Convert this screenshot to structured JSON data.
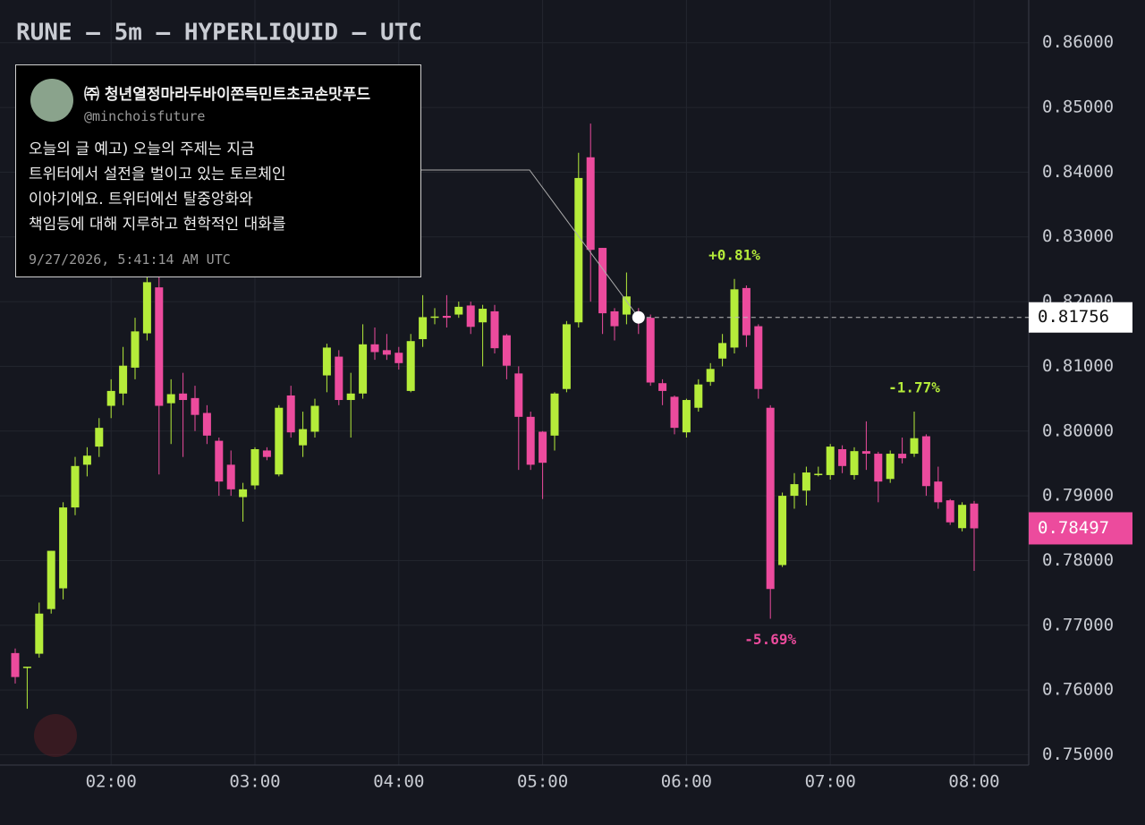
{
  "chart_data": {
    "type": "candlestick",
    "title": "RUNE — 5m — HYPERLIQUID — UTC",
    "up_color": "#b5ec3a",
    "down_color": "#ec4b9d",
    "grid": true,
    "x": [
      "01:20",
      "01:25",
      "01:30",
      "01:35",
      "01:40",
      "01:45",
      "01:50",
      "01:55",
      "02:00",
      "02:05",
      "02:10",
      "02:15",
      "02:20",
      "02:25",
      "02:30",
      "02:35",
      "02:40",
      "02:45",
      "02:50",
      "02:55",
      "03:00",
      "03:05",
      "03:10",
      "03:15",
      "03:20",
      "03:25",
      "03:30",
      "03:35",
      "03:40",
      "03:45",
      "03:50",
      "03:55",
      "04:00",
      "04:05",
      "04:10",
      "04:15",
      "04:20",
      "04:25",
      "04:30",
      "04:35",
      "04:40",
      "04:45",
      "04:50",
      "04:55",
      "05:00",
      "05:05",
      "05:10",
      "05:15",
      "05:20",
      "05:25",
      "05:30",
      "05:35",
      "05:40",
      "05:45",
      "05:50",
      "05:55",
      "06:00",
      "06:05",
      "06:10",
      "06:15",
      "06:20",
      "06:25",
      "06:30",
      "06:35",
      "06:40",
      "06:45",
      "06:50",
      "06:55",
      "07:00",
      "07:05",
      "07:10",
      "07:15",
      "07:20",
      "07:25",
      "07:30",
      "07:35",
      "07:40",
      "07:45",
      "07:50",
      "07:55",
      "08:00"
    ],
    "open": [
      0.7657,
      0.7635,
      0.7656,
      0.7725,
      0.7757,
      0.7882,
      0.7948,
      0.7976,
      0.8039,
      0.8058,
      0.8098,
      0.8151,
      0.8222,
      0.8043,
      0.8058,
      0.8051,
      0.8028,
      0.7985,
      0.7948,
      0.7898,
      0.7916,
      0.797,
      0.7933,
      0.8055,
      0.7978,
      0.7999,
      0.8086,
      0.8115,
      0.8048,
      0.8058,
      0.8134,
      0.8125,
      0.8121,
      0.8062,
      0.8142,
      0.8177,
      0.8178,
      0.818,
      0.8194,
      0.8168,
      0.8185,
      0.8148,
      0.8089,
      0.8022,
      0.7999,
      0.7993,
      0.8065,
      0.8168,
      0.8423,
      0.8283,
      0.8185,
      0.818,
      0.818,
      0.8175,
      0.8074,
      0.8053,
      0.7998,
      0.8036,
      0.8076,
      0.8112,
      0.8129,
      0.8221,
      0.8162,
      0.8036,
      0.7793,
      0.79,
      0.7908,
      0.7932,
      0.7932,
      0.7972,
      0.7932,
      0.7969,
      0.7965,
      0.7926,
      0.7965,
      0.7965,
      0.7992,
      0.7922,
      0.7893,
      0.785,
      0.7888
    ],
    "high": [
      0.7664,
      0.7636,
      0.7735,
      0.7815,
      0.789,
      0.796,
      0.7975,
      0.802,
      0.808,
      0.813,
      0.8175,
      0.826,
      0.826,
      0.808,
      0.809,
      0.807,
      0.804,
      0.799,
      0.797,
      0.792,
      0.7975,
      0.7975,
      0.804,
      0.807,
      0.803,
      0.805,
      0.8135,
      0.8125,
      0.809,
      0.8165,
      0.816,
      0.815,
      0.813,
      0.815,
      0.821,
      0.819,
      0.821,
      0.82,
      0.82,
      0.8195,
      0.8195,
      0.815,
      0.81,
      0.803,
      0.8,
      0.806,
      0.817,
      0.843,
      0.8475,
      0.8283,
      0.819,
      0.8245,
      0.819,
      0.818,
      0.808,
      0.8055,
      0.805,
      0.808,
      0.8105,
      0.815,
      0.8235,
      0.8225,
      0.8165,
      0.804,
      0.7905,
      0.7935,
      0.7945,
      0.7945,
      0.798,
      0.7978,
      0.7975,
      0.8015,
      0.7968,
      0.797,
      0.799,
      0.803,
      0.7995,
      0.7945,
      0.7895,
      0.789,
      0.7892
    ],
    "low": [
      0.761,
      0.7571,
      0.765,
      0.7718,
      0.774,
      0.787,
      0.793,
      0.796,
      0.802,
      0.804,
      0.808,
      0.814,
      0.7933,
      0.798,
      0.796,
      0.8,
      0.798,
      0.79,
      0.79,
      0.786,
      0.791,
      0.7955,
      0.793,
      0.799,
      0.796,
      0.799,
      0.806,
      0.804,
      0.799,
      0.805,
      0.811,
      0.811,
      0.8095,
      0.806,
      0.813,
      0.8165,
      0.816,
      0.8175,
      0.815,
      0.81,
      0.812,
      0.808,
      0.794,
      0.794,
      0.7895,
      0.797,
      0.806,
      0.816,
      0.82,
      0.815,
      0.814,
      0.8165,
      0.815,
      0.807,
      0.804,
      0.7995,
      0.799,
      0.803,
      0.807,
      0.81,
      0.812,
      0.813,
      0.805,
      0.771,
      0.779,
      0.788,
      0.7885,
      0.793,
      0.7925,
      0.7935,
      0.7925,
      0.794,
      0.789,
      0.792,
      0.795,
      0.796,
      0.79,
      0.788,
      0.7855,
      0.7845,
      0.7784
    ],
    "close": [
      0.762,
      0.7636,
      0.7718,
      0.7815,
      0.7882,
      0.7946,
      0.7962,
      0.8005,
      0.8062,
      0.8101,
      0.8154,
      0.823,
      0.8039,
      0.8057,
      0.8048,
      0.8025,
      0.7993,
      0.7922,
      0.791,
      0.791,
      0.7972,
      0.796,
      0.8036,
      0.7998,
      0.8003,
      0.8039,
      0.8129,
      0.8048,
      0.8058,
      0.8134,
      0.8122,
      0.8118,
      0.8105,
      0.8139,
      0.8176,
      0.8177,
      0.8175,
      0.8192,
      0.8161,
      0.8189,
      0.8128,
      0.8101,
      0.8022,
      0.7948,
      0.7951,
      0.8058,
      0.8165,
      0.8391,
      0.828,
      0.8182,
      0.8162,
      0.8208,
      0.8172,
      0.8075,
      0.8062,
      0.8005,
      0.8048,
      0.8072,
      0.8096,
      0.8136,
      0.8219,
      0.8148,
      0.8065,
      0.7756,
      0.79,
      0.7918,
      0.7936,
      0.7934,
      0.7976,
      0.7946,
      0.7969,
      0.7965,
      0.7922,
      0.7965,
      0.7958,
      0.7989,
      0.7915,
      0.789,
      0.7859,
      0.7886,
      0.78497
    ],
    "ylim": [
      0.7484,
      0.8666
    ],
    "yticks": [
      {
        "value": 0.75,
        "label": "0.75000"
      },
      {
        "value": 0.76,
        "label": "0.76000"
      },
      {
        "value": 0.77,
        "label": "0.77000"
      },
      {
        "value": 0.78,
        "label": "0.78000"
      },
      {
        "value": 0.79,
        "label": "0.79000"
      },
      {
        "value": 0.8,
        "label": "0.80000"
      },
      {
        "value": 0.81,
        "label": "0.81000"
      },
      {
        "value": 0.82,
        "label": "0.82000"
      },
      {
        "value": 0.83,
        "label": "0.83000"
      },
      {
        "value": 0.84,
        "label": "0.84000"
      },
      {
        "value": 0.85,
        "label": "0.85000"
      },
      {
        "value": 0.86,
        "label": "0.86000"
      }
    ],
    "xticks": [
      "02:00",
      "03:00",
      "04:00",
      "05:00",
      "06:00",
      "07:00",
      "08:00"
    ],
    "annotations": [
      {
        "text": "+0.81%",
        "x": "06:20",
        "position": "above",
        "color": "#b5ec3a"
      },
      {
        "text": "-1.77%",
        "x": "07:35",
        "position": "above",
        "color": "#b5ec3a"
      },
      {
        "text": "-5.69%",
        "x": "06:35",
        "position": "below",
        "color": "#ec4b9d"
      }
    ],
    "marker": {
      "x": "05:40",
      "value": 0.81756
    },
    "last_price": 0.78497,
    "tooltip": {
      "name": "㈜ 청년열정마라두바이쫀득민트초코손맛푸드",
      "handle": "@minchoisfuture",
      "lines": [
        "오늘의 글 예고) 오늘의 주제는 지금",
        "트위터에서 설전을 벌이고 있는 토르체인",
        "이야기에요. 트위터에선 탈중앙화와",
        "책임등에 대해 지루하고 현학적인 대화를"
      ],
      "time": "9/27/2026, 5:41:14 AM UTC"
    }
  }
}
